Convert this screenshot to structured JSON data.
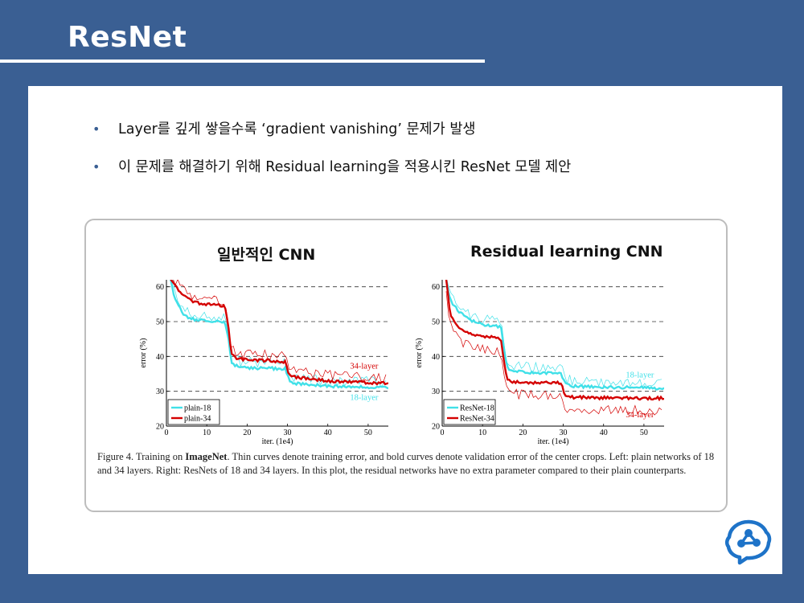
{
  "slide": {
    "title": "ResNet"
  },
  "bullets": [
    {
      "text": "Layer를 깊게 쌓을수록 ‘gradient vanishing’ 문제가 발생"
    },
    {
      "text": "이 문제를 해결하기 위해 Residual learning을 적용시킨 ResNet 모델 제안"
    }
  ],
  "headings": {
    "left": "일반적인 CNN",
    "right": "Residual learning CNN"
  },
  "caption": {
    "prefix": "Figure 4. Training on ",
    "bold": "ImageNet",
    "rest": ". Thin curves denote training error, and bold curves denote validation error of the center crops. Left: plain networks of 18 and 34 layers. Right: ResNets of 18 and 34 layers. In this plot, the residual networks have no extra parameter compared to their plain counterparts."
  },
  "colors": {
    "layer18": "#40e0e8",
    "layer34": "#d40000",
    "background": "#3a5f93"
  },
  "icons": {
    "logo": "brain-network-logo-icon"
  },
  "chart_data": [
    {
      "type": "line",
      "xlabel": "iter. (1e4)",
      "ylabel": "error (%)",
      "xlim": [
        0,
        55
      ],
      "ylim": [
        20,
        62
      ],
      "xticks": [
        0,
        10,
        20,
        30,
        40,
        50
      ],
      "yticks": [
        20,
        30,
        40,
        50,
        60
      ],
      "grid": "dashed at 30, 40, 50, 60",
      "legend_position": "bottom-left",
      "annotations": [
        {
          "text": "34-layer",
          "color": "#d40000",
          "x": 49,
          "y": 36.5
        },
        {
          "text": "18-layer",
          "color": "#40e0e8",
          "x": 49,
          "y": 27.5
        }
      ],
      "series": [
        {
          "name": "plain-18",
          "color": "#40e0e8",
          "role": "validation",
          "x": [
            1,
            2,
            4,
            6,
            9,
            12,
            14.5,
            15.5,
            16,
            17,
            20,
            25,
            29.5,
            30.5,
            32,
            40,
            50,
            55
          ],
          "y": [
            62,
            57,
            52.5,
            50.8,
            50.3,
            50,
            49.8,
            44,
            38.5,
            37.4,
            36.7,
            36.6,
            36.5,
            32.8,
            32.3,
            31.5,
            31.2,
            31
          ]
        },
        {
          "name": "plain-34",
          "color": "#d40000",
          "role": "validation",
          "x": [
            1,
            3,
            6,
            9,
            12,
            14.5,
            15.5,
            16,
            17,
            20,
            25,
            29.5,
            30.5,
            32,
            40,
            50,
            55
          ],
          "y": [
            62,
            59,
            56,
            55,
            54.8,
            54.6,
            47,
            41,
            39.6,
            39,
            38.8,
            38.5,
            34.5,
            34,
            33,
            32.5,
            32.3
          ]
        }
      ]
    },
    {
      "type": "line",
      "xlabel": "iter. (1e4)",
      "ylabel": "error (%)",
      "xlim": [
        0,
        55
      ],
      "ylim": [
        20,
        62
      ],
      "xticks": [
        0,
        10,
        20,
        30,
        40,
        50
      ],
      "yticks": [
        20,
        30,
        40,
        50,
        60
      ],
      "grid": "dashed at 30, 40, 50, 60",
      "legend_position": "bottom-left",
      "annotations": [
        {
          "text": "18-layer",
          "color": "#40e0e8",
          "x": 49,
          "y": 34
        },
        {
          "text": "34-layer",
          "color": "#d40000",
          "x": 49,
          "y": 22.5
        }
      ],
      "series": [
        {
          "name": "ResNet-18",
          "color": "#40e0e8",
          "role": "validation",
          "x": [
            1,
            2,
            4,
            6,
            9,
            12,
            14.5,
            15.5,
            16,
            17,
            20,
            25,
            29.5,
            30.5,
            32,
            40,
            50,
            55
          ],
          "y": [
            62,
            56,
            53,
            51,
            49.5,
            48.8,
            48.5,
            41,
            37,
            36,
            35.5,
            35.3,
            35.2,
            32,
            31.5,
            31.2,
            31,
            30.8
          ]
        },
        {
          "name": "ResNet-34",
          "color": "#d40000",
          "role": "validation",
          "x": [
            1,
            2,
            4,
            6,
            9,
            12,
            14.5,
            15.5,
            16,
            17,
            20,
            25,
            29.5,
            30.5,
            32,
            40,
            50,
            55
          ],
          "y": [
            62,
            52,
            48.5,
            47,
            46,
            45.5,
            45.2,
            37,
            33.5,
            32.8,
            32.5,
            32.5,
            32.4,
            28.8,
            28.3,
            28.1,
            28,
            28
          ]
        }
      ]
    }
  ]
}
